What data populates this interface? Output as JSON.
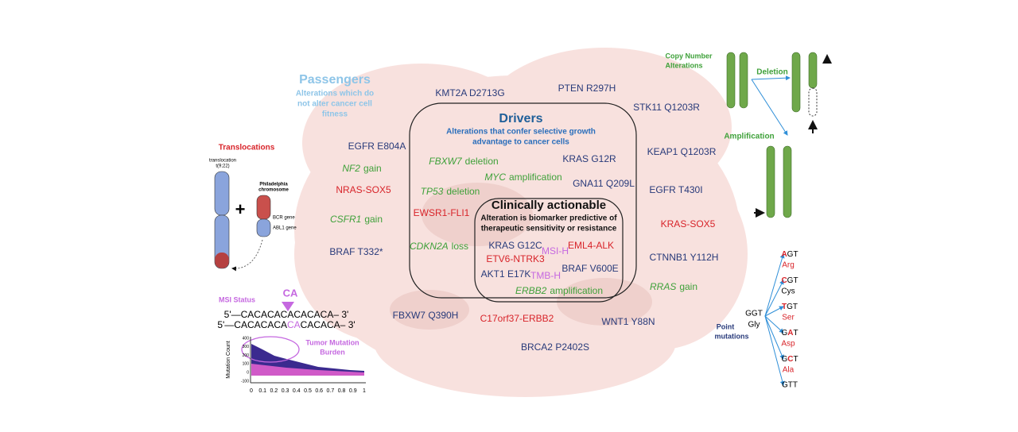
{
  "passengers": {
    "title": "Passengers",
    "subtitle": [
      "Alterations which do",
      "not alter cancer cell",
      "fitness"
    ],
    "items": [
      "KMT2A D2713G",
      "PTEN R297H",
      "STK11 Q1203R",
      "EGFR E804A",
      "KEAP1 Q1203R",
      "NRAS-SOX5",
      "EGFR T430I",
      "KRAS-SOX5",
      "BRAF T332*",
      "CTNNB1 Y112H",
      "FBXW7 Q390H",
      "C17orf37-ERBB2",
      "WNT1 Y88N",
      "BRCA2 P2402S"
    ],
    "copy_items": [
      {
        "gene": "NF2",
        "change": "gain"
      },
      {
        "gene": "CSFR1",
        "change": "gain"
      },
      {
        "gene": "RRAS",
        "change": "gain"
      }
    ]
  },
  "drivers": {
    "title": "Drivers",
    "subtitle": [
      "Alterations that confer selective growth",
      "advantage to cancer cells"
    ],
    "items": [
      "KRAS G12R",
      "GNA11 Q209L",
      "EWSR1-FLI1"
    ],
    "copy_items": [
      {
        "gene": "FBXW7",
        "change": "deletion"
      },
      {
        "gene": "MYC",
        "change": "amplification"
      },
      {
        "gene": "TP53",
        "change": "deletion"
      },
      {
        "gene": "CDKN2A",
        "change": "loss"
      }
    ]
  },
  "actionable": {
    "title": "Clinically actionable",
    "subtitle": [
      "Alteration is biomarker predictive of",
      "therapeutic sensitivity or resistance"
    ],
    "items": [
      "KRAS G12C",
      "MSI-H",
      "EML4-ALK",
      "ETV6-NTRK3",
      "AKT1 E17K",
      "TMB-H",
      "BRAF V600E"
    ],
    "copy_items": [
      {
        "gene": "ERBB2",
        "change": "amplification"
      }
    ]
  },
  "translocations": {
    "title": "Translocations",
    "chromosome_label": [
      "translocation",
      "t(9;22)"
    ],
    "plus": "+",
    "philadelphia": [
      "Philadelphia",
      "chromosome"
    ],
    "genes": [
      "BCR gene",
      "ABL1 gene"
    ]
  },
  "msi": {
    "title": "MSI Status",
    "insert": "CA",
    "seq1": "5'—CACACACACACACA– 3'",
    "seq2": {
      "before": "5'—CACACACA",
      "insert": "CA",
      "after": "CACACA– 3'"
    },
    "tmb": [
      "Tumor Mutation",
      "Burden"
    ],
    "y_label": "Mutation Count",
    "yticks": [
      400,
      300,
      200,
      100,
      0,
      -100
    ],
    "xticks": [
      0,
      0.1,
      0.2,
      0.3,
      0.4,
      0.5,
      0.6,
      0.7,
      0.8,
      0.9,
      1
    ]
  },
  "copy_number": {
    "title": [
      "Copy Number",
      "Alterations"
    ],
    "deletion": "Deletion",
    "amplification": "Amplification"
  },
  "point_mutations": {
    "title": [
      "Point",
      "mutations"
    ],
    "reference": {
      "codon": "GGT",
      "amino": "Gly"
    },
    "variants": [
      {
        "changed": "A",
        "after": "GT",
        "amino": "Arg"
      },
      {
        "changed": "C",
        "after": "GT",
        "amino": "Cys"
      },
      {
        "changed": "T",
        "after": "GT",
        "amino": "Ser"
      },
      {
        "before": "G",
        "changed": "A",
        "after": "T",
        "amino": "Asp"
      },
      {
        "before": "G",
        "changed": "C",
        "after": "T",
        "amino": "Ala"
      },
      {
        "codon": "GTT"
      }
    ]
  }
}
